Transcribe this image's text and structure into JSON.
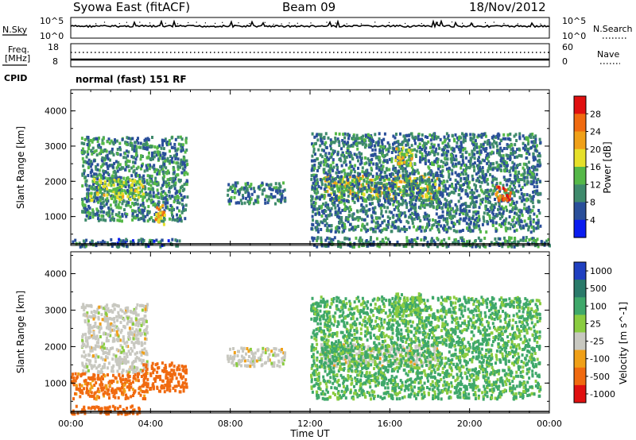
{
  "header": {
    "station": "Syowa East (fitACF)",
    "beam": "Beam 09",
    "date": "18/Nov/2012"
  },
  "noise_panel": {
    "left_label": "N.Sky",
    "right_label": "N.Search",
    "left_ticks": [
      "10^5",
      "10^0"
    ],
    "right_ticks": [
      "10^5",
      "10^0"
    ]
  },
  "freq_panel": {
    "left_label_line1": "Freq.",
    "left_label_line2": "[MHz]",
    "right_label": "Nave",
    "left_ticks": [
      "18",
      "8"
    ],
    "right_ticks": [
      "60",
      "0"
    ]
  },
  "cpid": {
    "label": "CPID",
    "text": "normal (fast) 151 RF"
  },
  "chart_data": [
    {
      "type": "heatmap",
      "title": "",
      "quantity": "Power",
      "ylabel": "Slant Range [km]",
      "xlabel": "Time UT",
      "x_ticks": [
        "00:00",
        "04:00",
        "08:00",
        "12:00",
        "16:00",
        "20:00",
        "00:00"
      ],
      "y_ticks": [
        "1000",
        "2000",
        "3000",
        "4000"
      ],
      "ylim": [
        180,
        4600
      ],
      "xlim_hours": [
        0,
        24
      ],
      "colorbar_label": "Power [dB]",
      "colorbar_ticks": [
        "4",
        "8",
        "12",
        "16",
        "20",
        "24",
        "28"
      ],
      "colorbar_colors": [
        "#0a1cf0",
        "#2a4f9a",
        "#3f8a6c",
        "#55b848",
        "#e6e02a",
        "#f0a018",
        "#f06a10",
        "#e01010"
      ],
      "echo_regions": [
        {
          "t0": 0.5,
          "t1": 5.8,
          "r0": 900,
          "r1": 3300,
          "level": 10
        },
        {
          "t0": 0.9,
          "t1": 3.6,
          "r0": 1500,
          "r1": 2100,
          "level": 16
        },
        {
          "t0": 4.2,
          "t1": 4.7,
          "r0": 800,
          "r1": 1400,
          "level": 22
        },
        {
          "t0": 0.0,
          "t1": 5.5,
          "r0": 180,
          "r1": 400,
          "level": 8
        },
        {
          "t0": 7.8,
          "t1": 10.7,
          "r0": 1400,
          "r1": 2000,
          "level": 9
        },
        {
          "t0": 12.5,
          "t1": 18.5,
          "r0": 1500,
          "r1": 2200,
          "level": 18
        },
        {
          "t0": 12.0,
          "t1": 23.5,
          "r0": 600,
          "r1": 3400,
          "level": 9
        },
        {
          "t0": 16.2,
          "t1": 17.2,
          "r0": 2500,
          "r1": 3000,
          "level": 18
        },
        {
          "t0": 21.2,
          "t1": 22.0,
          "r0": 1500,
          "r1": 1900,
          "level": 26
        },
        {
          "t0": 12.0,
          "t1": 24.0,
          "r0": 180,
          "r1": 450,
          "level": 10
        }
      ]
    },
    {
      "type": "heatmap",
      "title": "",
      "quantity": "Velocity",
      "ylabel": "Slant Range [km]",
      "xlabel": "Time UT",
      "x_ticks": [
        "00:00",
        "04:00",
        "08:00",
        "12:00",
        "16:00",
        "20:00",
        "00:00"
      ],
      "y_ticks": [
        "1000",
        "2000",
        "3000",
        "4000"
      ],
      "ylim": [
        180,
        4600
      ],
      "xlim_hours": [
        0,
        24
      ],
      "colorbar_label": "Velocity [m s^-1]",
      "colorbar_ticks": [
        "1000",
        "500",
        "100",
        "25",
        "-25",
        "-100",
        "-500",
        "-1000"
      ],
      "colorbar_colors": [
        "#2040c0",
        "#2a7a6a",
        "#3fa86a",
        "#8acc40",
        "#c8c8c0",
        "#f0a018",
        "#f06a10",
        "#e01010"
      ],
      "echo_regions": [
        {
          "t0": 0.5,
          "t1": 3.8,
          "r0": 1300,
          "r1": 3200,
          "level": 0
        },
        {
          "t0": 0.0,
          "t1": 3.8,
          "r0": 600,
          "r1": 1300,
          "level": -150
        },
        {
          "t0": 3.5,
          "t1": 5.8,
          "r0": 800,
          "r1": 1600,
          "level": -300
        },
        {
          "t0": 0.0,
          "t1": 3.5,
          "r0": 180,
          "r1": 420,
          "level": -200
        },
        {
          "t0": 7.8,
          "t1": 10.7,
          "r0": 1500,
          "r1": 2000,
          "level": 0
        },
        {
          "t0": 12.5,
          "t1": 18.5,
          "r0": 1500,
          "r1": 2100,
          "level": 0
        },
        {
          "t0": 12.5,
          "t1": 13.8,
          "r0": 1700,
          "r1": 2100,
          "level": 300
        },
        {
          "t0": 12.0,
          "t1": 23.5,
          "r0": 600,
          "r1": 3400,
          "level": 120
        },
        {
          "t0": 16.2,
          "t1": 17.5,
          "r0": 2700,
          "r1": 3500,
          "level": 80
        }
      ]
    }
  ]
}
